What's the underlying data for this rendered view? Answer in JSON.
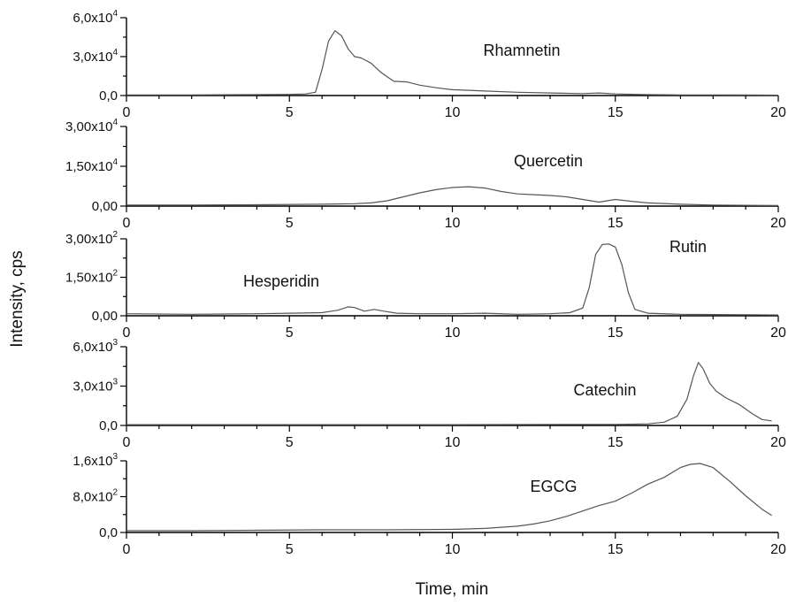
{
  "chart_data": {
    "type": "line",
    "xlabel": "Time, min",
    "ylabel": "Intensity, cps",
    "xlim": [
      0,
      20
    ],
    "x_ticks": [
      0,
      5,
      10,
      15,
      20
    ],
    "grid": false,
    "panels": [
      {
        "label": "Rhamnetin",
        "ylim": [
          0,
          60000
        ],
        "y_ticks": [
          {
            "value": 0,
            "mant": "0,0",
            "exp": ""
          },
          {
            "value": 30000,
            "mant": "3,0x10",
            "exp": "4"
          },
          {
            "value": 60000,
            "mant": "6,0x10",
            "exp": "4"
          }
        ],
        "series": [
          {
            "x": [
              0,
              2,
              4,
              5,
              5.5,
              5.8,
              6.0,
              6.2,
              6.4,
              6.6,
              6.8,
              7.0,
              7.2,
              7.5,
              7.8,
              8.2,
              8.6,
              9.0,
              9.5,
              10,
              11,
              12,
              13,
              14,
              14.5,
              15,
              16,
              17,
              18,
              19,
              20
            ],
            "y": [
              500,
              500,
              700,
              900,
              1200,
              2500,
              20000,
              42000,
              50000,
              46000,
              36000,
              30000,
              29000,
              25000,
              18000,
              11000,
              10500,
              8000,
              6000,
              4500,
              3500,
              2500,
              2000,
              1500,
              2000,
              1200,
              700,
              500,
              500,
              400,
              300
            ]
          }
        ]
      },
      {
        "label": "Quercetin",
        "ylim": [
          0,
          30000
        ],
        "y_ticks": [
          {
            "value": 0,
            "mant": "0,00",
            "exp": ""
          },
          {
            "value": 15000,
            "mant": "1,50x10",
            "exp": "4"
          },
          {
            "value": 30000,
            "mant": "3,00x10",
            "exp": "4"
          }
        ],
        "series": [
          {
            "x": [
              0,
              2,
              4,
              6,
              7,
              7.5,
              8,
              8.5,
              9,
              9.5,
              10,
              10.5,
              11,
              11.5,
              12,
              12.5,
              13,
              13.5,
              14,
              14.5,
              15,
              15.5,
              16,
              17,
              18,
              19,
              20
            ],
            "y": [
              400,
              400,
              500,
              700,
              900,
              1200,
              2000,
              3500,
              5000,
              6200,
              7000,
              7300,
              6800,
              5500,
              4600,
              4300,
              4000,
              3500,
              2500,
              1500,
              2500,
              1800,
              1200,
              700,
              400,
              300,
              200
            ]
          }
        ]
      },
      {
        "label": "Hesperidin",
        "label2": "Rutin",
        "ylim": [
          0,
          300
        ],
        "y_ticks": [
          {
            "value": 0,
            "mant": "0,00",
            "exp": ""
          },
          {
            "value": 150,
            "mant": "1,50x10",
            "exp": "2"
          },
          {
            "value": 300,
            "mant": "3,00x10",
            "exp": "2"
          }
        ],
        "series": [
          {
            "x": [
              0,
              2,
              4,
              5,
              6,
              6.5,
              6.8,
              7.0,
              7.3,
              7.6,
              7.9,
              8.3,
              9,
              10,
              11,
              12,
              13,
              13.6,
              14.0,
              14.2,
              14.4,
              14.6,
              14.8,
              15.0,
              15.2,
              15.4,
              15.6,
              16,
              17,
              18,
              19,
              20
            ],
            "y": [
              8,
              6,
              8,
              10,
              12,
              22,
              35,
              32,
              18,
              25,
              18,
              10,
              8,
              8,
              10,
              6,
              8,
              12,
              30,
              110,
              240,
              278,
              280,
              268,
              200,
              90,
              25,
              10,
              6,
              5,
              4,
              3
            ]
          }
        ]
      },
      {
        "label": "Catechin",
        "ylim": [
          0,
          6000
        ],
        "y_ticks": [
          {
            "value": 0,
            "mant": "0,0",
            "exp": ""
          },
          {
            "value": 3000,
            "mant": "3,0x10",
            "exp": "3"
          },
          {
            "value": 6000,
            "mant": "6,0x10",
            "exp": "3"
          }
        ],
        "series": [
          {
            "x": [
              0,
              5,
              10,
              15,
              16,
              16.5,
              16.9,
              17.2,
              17.4,
              17.55,
              17.7,
              17.9,
              18.1,
              18.4,
              18.8,
              19.2,
              19.5,
              19.8
            ],
            "y": [
              60,
              60,
              60,
              80,
              120,
              250,
              700,
              2000,
              3800,
              4800,
              4300,
              3200,
              2600,
              2100,
              1600,
              900,
              450,
              350
            ]
          }
        ]
      },
      {
        "label": "EGCG",
        "ylim": [
          0,
          1600
        ],
        "y_ticks": [
          {
            "value": 0,
            "mant": "0,0",
            "exp": ""
          },
          {
            "value": 800,
            "mant": "8,0x10",
            "exp": "2"
          },
          {
            "value": 1600,
            "mant": "1,6x10",
            "exp": "3"
          }
        ],
        "series": [
          {
            "x": [
              0,
              2,
              4,
              6,
              8,
              10,
              11,
              12,
              12.5,
              13,
              13.5,
              14,
              14.5,
              15,
              15.5,
              16,
              16.5,
              17,
              17.3,
              17.6,
              18,
              18.5,
              19,
              19.5,
              19.8
            ],
            "y": [
              40,
              40,
              50,
              60,
              60,
              70,
              90,
              140,
              190,
              260,
              360,
              480,
              600,
              700,
              880,
              1080,
              1230,
              1450,
              1520,
              1540,
              1450,
              1150,
              820,
              520,
              380
            ]
          }
        ]
      }
    ]
  }
}
